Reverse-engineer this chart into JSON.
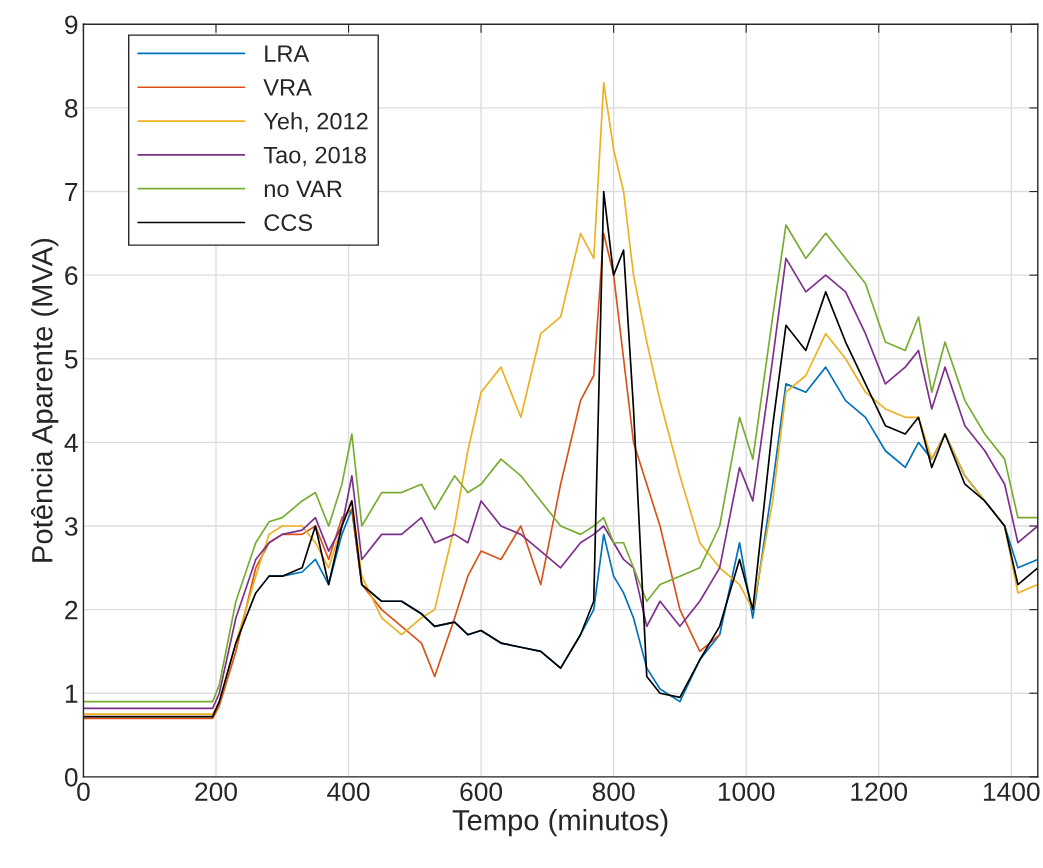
{
  "chart_data": {
    "type": "line",
    "xlabel": "Tempo (minutos)",
    "ylabel": "Potência Aparente (MVA)",
    "x": [
      0,
      100,
      195,
      205,
      230,
      260,
      280,
      300,
      330,
      350,
      370,
      390,
      405,
      420,
      450,
      480,
      510,
      530,
      560,
      580,
      600,
      630,
      660,
      690,
      720,
      750,
      770,
      785,
      800,
      815,
      830,
      850,
      870,
      900,
      930,
      960,
      990,
      1010,
      1040,
      1060,
      1090,
      1120,
      1150,
      1180,
      1210,
      1240,
      1260,
      1280,
      1300,
      1330,
      1360,
      1390,
      1410,
      1440
    ],
    "series": [
      {
        "name": "LRA",
        "color": "#0072bd",
        "values": [
          null,
          null,
          null,
          null,
          null,
          null,
          2.4,
          2.4,
          2.45,
          2.6,
          2.3,
          2.9,
          3.2,
          2.3,
          2.1,
          2.1,
          1.95,
          1.8,
          1.85,
          1.7,
          1.75,
          1.6,
          1.55,
          1.5,
          1.3,
          1.7,
          2.0,
          2.9,
          2.4,
          2.2,
          1.9,
          1.3,
          1.05,
          0.9,
          1.4,
          1.7,
          2.8,
          1.9,
          3.5,
          4.7,
          4.6,
          4.9,
          4.5,
          4.3,
          3.9,
          3.7,
          4.0,
          3.8,
          4.1,
          3.6,
          3.3,
          3.0,
          2.5,
          2.6
        ]
      },
      {
        "name": "VRA",
        "color": "#d95319",
        "values": [
          0.7,
          0.7,
          0.7,
          0.85,
          1.5,
          2.5,
          2.8,
          2.9,
          2.9,
          3.0,
          2.6,
          3.1,
          3.2,
          2.3,
          2.0,
          1.8,
          1.6,
          1.2,
          1.9,
          2.4,
          2.7,
          2.6,
          3.0,
          2.3,
          3.5,
          4.5,
          4.8,
          6.5,
          6.0,
          5.0,
          4.0,
          3.5,
          3.0,
          2.0,
          1.5,
          1.7,
          null,
          null,
          null,
          null,
          null,
          null,
          null,
          null,
          null,
          null,
          null,
          null,
          null,
          null,
          null,
          null,
          null,
          null
        ]
      },
      {
        "name": "Yeh, 2012",
        "color": "#edb120",
        "values": [
          0.75,
          0.75,
          0.75,
          0.9,
          1.6,
          2.4,
          2.9,
          3.0,
          3.0,
          2.8,
          2.5,
          3.0,
          3.3,
          2.4,
          1.9,
          1.7,
          1.9,
          2.0,
          3.0,
          3.9,
          4.6,
          4.9,
          4.3,
          5.3,
          5.5,
          6.5,
          6.2,
          8.3,
          7.5,
          7.0,
          6.0,
          5.2,
          4.5,
          3.6,
          2.8,
          2.5,
          2.3,
          2.0,
          3.3,
          4.6,
          4.8,
          5.3,
          5.0,
          4.6,
          4.4,
          4.3,
          4.3,
          3.8,
          4.1,
          3.6,
          3.3,
          3.0,
          2.2,
          2.3
        ]
      },
      {
        "name": "Tao, 2018",
        "color": "#7e2f8e",
        "values": [
          0.82,
          0.82,
          0.82,
          1.0,
          1.9,
          2.6,
          2.8,
          2.9,
          2.95,
          3.1,
          2.7,
          3.0,
          3.6,
          2.6,
          2.9,
          2.9,
          3.1,
          2.8,
          2.9,
          2.8,
          3.3,
          3.0,
          2.9,
          2.7,
          2.5,
          2.8,
          2.9,
          3.0,
          2.8,
          2.6,
          2.5,
          1.8,
          2.1,
          1.8,
          2.1,
          2.5,
          3.7,
          3.3,
          5.0,
          6.2,
          5.8,
          6.0,
          5.8,
          5.3,
          4.7,
          4.9,
          5.1,
          4.4,
          4.9,
          4.2,
          3.9,
          3.5,
          2.8,
          3.0
        ]
      },
      {
        "name": "no VAR",
        "color": "#77ac30",
        "values": [
          0.9,
          0.9,
          0.9,
          1.1,
          2.1,
          2.8,
          3.05,
          3.1,
          3.3,
          3.4,
          3.0,
          3.5,
          4.1,
          3.0,
          3.4,
          3.4,
          3.5,
          3.2,
          3.6,
          3.4,
          3.5,
          3.8,
          3.6,
          3.3,
          3.0,
          2.9,
          3.0,
          3.1,
          2.8,
          2.8,
          2.5,
          2.1,
          2.3,
          2.4,
          2.5,
          3.0,
          4.3,
          3.8,
          5.5,
          6.6,
          6.2,
          6.5,
          6.2,
          5.9,
          5.2,
          5.1,
          5.5,
          4.6,
          5.2,
          4.5,
          4.1,
          3.8,
          3.1,
          3.1
        ]
      },
      {
        "name": "CCS",
        "color": "#000000",
        "values": [
          0.72,
          0.72,
          0.72,
          0.9,
          1.6,
          2.2,
          2.4,
          2.4,
          2.5,
          3.0,
          2.3,
          3.0,
          3.3,
          2.3,
          2.1,
          2.1,
          1.95,
          1.8,
          1.85,
          1.7,
          1.75,
          1.6,
          1.55,
          1.5,
          1.3,
          1.7,
          2.1,
          7.0,
          6.0,
          6.3,
          4.4,
          1.2,
          1.0,
          0.95,
          1.4,
          1.8,
          2.6,
          2.0,
          4.2,
          5.4,
          5.1,
          5.8,
          5.2,
          4.7,
          4.2,
          4.1,
          4.3,
          3.7,
          4.1,
          3.5,
          3.3,
          3.0,
          2.3,
          2.5
        ]
      }
    ],
    "xlim": [
      0,
      1440
    ],
    "xticks": [
      0,
      200,
      400,
      600,
      800,
      1000,
      1200,
      1400
    ],
    "ylim": [
      0,
      9
    ],
    "yticks": [
      0,
      1,
      2,
      3,
      4,
      5,
      6,
      7,
      8,
      9
    ],
    "grid": true,
    "legend": "top left",
    "line_style": "solid",
    "marker": "none"
  }
}
